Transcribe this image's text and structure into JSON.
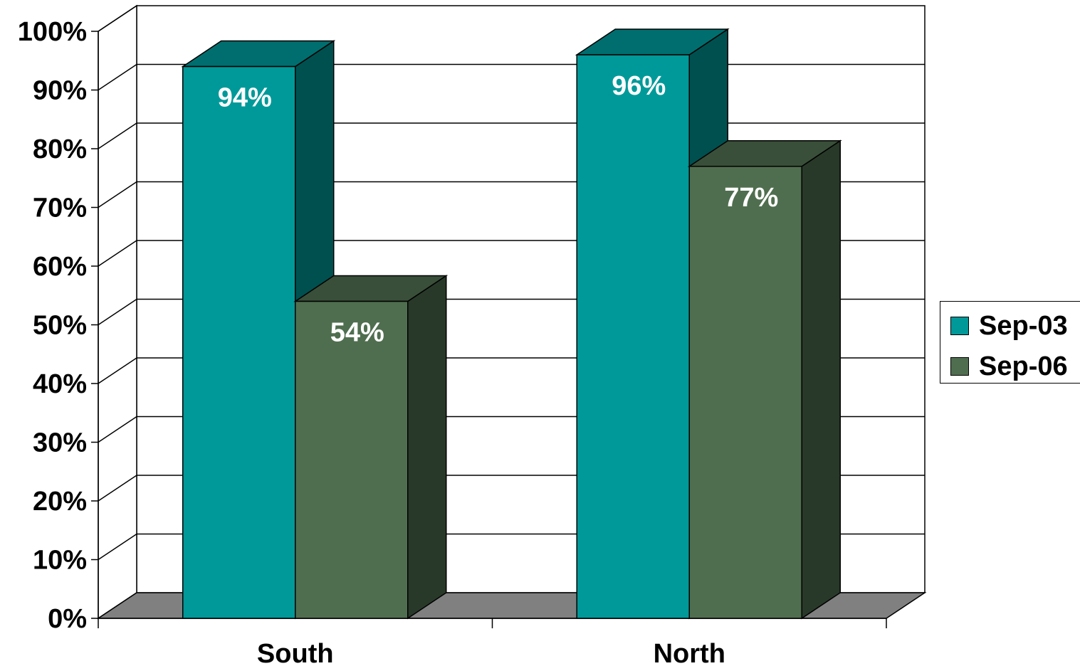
{
  "chart_data": {
    "type": "bar",
    "categories": [
      "South",
      "North"
    ],
    "series": [
      {
        "name": "Sep-03",
        "values": [
          94,
          96
        ],
        "labels": [
          "94%",
          "96%"
        ],
        "color": "#009999"
      },
      {
        "name": "Sep-06",
        "values": [
          54,
          77
        ],
        "labels": [
          "54%",
          "77%"
        ],
        "color": "#4f6e4f"
      }
    ],
    "ylim": [
      0,
      100
    ],
    "yticks": [
      "0%",
      "10%",
      "20%",
      "30%",
      "40%",
      "50%",
      "60%",
      "70%",
      "80%",
      "90%",
      "100%"
    ],
    "grid": true,
    "three_d": true,
    "legend_position": "right",
    "title": "",
    "xlabel": "",
    "ylabel": "",
    "colors": {
      "floor": "#808080",
      "data_label": "#ffffff"
    }
  }
}
